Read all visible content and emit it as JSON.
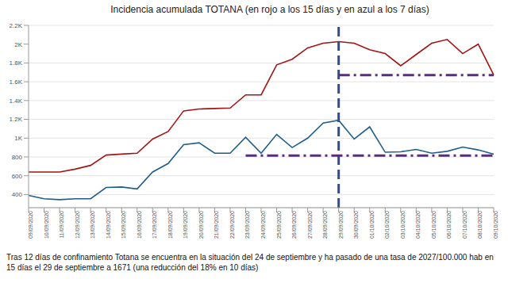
{
  "chart_data": {
    "type": "line",
    "title": "Incidencia acumulada TOTANA (en rojo a los 15 días y en azul a los 7 días)",
    "categories": [
      "09/09/2020",
      "10/09/2020",
      "11/09/2020",
      "12/09/2020",
      "13/09/2020",
      "14/09/2020",
      "15/09/2020",
      "16/09/2020",
      "17/09/2020",
      "18/09/2020",
      "19/09/2020",
      "20/09/2020",
      "21/09/2020",
      "22/09/2020",
      "23/09/2020",
      "24/09/2020",
      "25/09/2020",
      "26/09/2020",
      "27/09/2020",
      "28/09/2020",
      "29/09/2020",
      "30/09/2020",
      "01/10/2020",
      "02/10/2020",
      "03/10/2020",
      "04/10/2020",
      "05/10/2020",
      "06/10/2020",
      "07/10/2020",
      "08/10/2020",
      "09/10/2020"
    ],
    "series": [
      {
        "color": "#a31515",
        "values": [
          640,
          640,
          640,
          670,
          710,
          820,
          830,
          840,
          990,
          1070,
          1290,
          1310,
          1315,
          1320,
          1460,
          1460,
          1780,
          1840,
          1960,
          2010,
          2027,
          2010,
          1940,
          1900,
          1770,
          1890,
          2010,
          2050,
          1900,
          2000,
          1671
        ]
      },
      {
        "color": "#1f5f8b",
        "values": [
          390,
          355,
          345,
          355,
          355,
          475,
          480,
          460,
          640,
          730,
          930,
          950,
          840,
          840,
          1010,
          840,
          1040,
          900,
          1000,
          1160,
          1190,
          990,
          1120,
          850,
          855,
          880,
          840,
          860,
          905,
          875,
          830
        ]
      }
    ],
    "ylim": [
      260,
      2200
    ],
    "yticks": [
      400,
      600,
      800,
      {
        "value": 1000,
        "label": "1K"
      },
      {
        "value": 1200,
        "label": "1.2K"
      },
      {
        "value": 1400,
        "label": "1.4K"
      },
      {
        "value": 1600,
        "label": "1.6K"
      },
      {
        "value": 1800,
        "label": "1.8K"
      },
      {
        "value": 2000,
        "label": "2K"
      },
      {
        "value": 2200,
        "label": "2.2K"
      }
    ],
    "grid": true,
    "reference_lines": [
      {
        "x": "29/09/2020",
        "line_style": "dashed",
        "color": "#2e4f8f"
      },
      {
        "y": 1671,
        "from": "29/09/2020",
        "to": "09/10/2020",
        "line_style": "dashdot",
        "color": "#5b2a86"
      },
      {
        "y": 815,
        "from": "23/09/2020",
        "to": "09/10/2020",
        "line_style": "dashdot",
        "color": "#5b2a86"
      }
    ],
    "annotations": [
      {
        "text": "Tras 12 días de confinamiento Totana se encuentra en la situación del 24 de septiembre y ha pasado de una tasa de 2027/100.000 hab en 15 días el 29 de septiembre a 1671 (una reducción del 18% en 10 días)"
      }
    ]
  }
}
